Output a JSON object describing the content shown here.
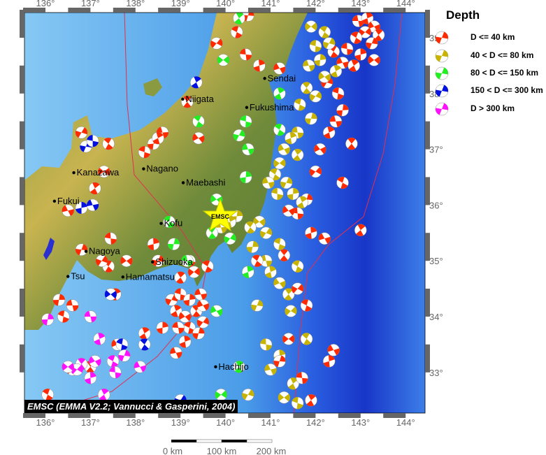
{
  "map": {
    "lon_ticks": [
      "136°",
      "137°",
      "138°",
      "139°",
      "140°",
      "141°",
      "142°",
      "143°",
      "144°"
    ],
    "lat_ticks": [
      "39°",
      "38°",
      "37°",
      "36°",
      "35°",
      "34°",
      "33°"
    ],
    "cities": [
      {
        "name": "Sendai",
        "lon": 140.87,
        "lat": 38.27
      },
      {
        "name": "Niigata",
        "lon": 139.05,
        "lat": 37.9
      },
      {
        "name": "Fukushima",
        "lon": 140.47,
        "lat": 37.75
      },
      {
        "name": "Nagano",
        "lon": 138.18,
        "lat": 36.65
      },
      {
        "name": "Maebashi",
        "lon": 139.06,
        "lat": 36.4
      },
      {
        "name": "Kanazawa",
        "lon": 136.63,
        "lat": 36.58
      },
      {
        "name": "Fukui",
        "lon": 136.2,
        "lat": 36.07
      },
      {
        "name": "Kofu",
        "lon": 138.57,
        "lat": 35.67
      },
      {
        "name": "Nagoya",
        "lon": 136.9,
        "lat": 35.17
      },
      {
        "name": "Tsu",
        "lon": 136.5,
        "lat": 34.72
      },
      {
        "name": "Shizuoka",
        "lon": 138.38,
        "lat": 34.98
      },
      {
        "name": "Hamamatsu",
        "lon": 137.72,
        "lat": 34.71
      },
      {
        "name": "Hachijo",
        "lon": 139.78,
        "lat": 33.1
      }
    ],
    "star_label": "EMSC",
    "credit": "EMSC (EMMA V2.2; Vannucci & Gasperini, 2004)",
    "scale": {
      "labels": [
        "0 km",
        "100 km",
        "200 km"
      ]
    }
  },
  "legend": {
    "title": "Depth",
    "classes": [
      {
        "label": "D <= 40 km",
        "color": "#ff2a00"
      },
      {
        "label": "40 < D <= 80 km",
        "color": "#c8b400"
      },
      {
        "label": "80 < D <= 150 km",
        "color": "#22ee22"
      },
      {
        "label": "150 < D <= 300 km",
        "color": "#0010e0"
      },
      {
        "label": "D > 300 km",
        "color": "#ff10ff"
      }
    ]
  },
  "events": [
    [
      142.95,
      39.3,
      1
    ],
    [
      143.15,
      39.35,
      1
    ],
    [
      143.3,
      39.2,
      1
    ],
    [
      143.4,
      39.05,
      1
    ],
    [
      143.1,
      39.1,
      1
    ],
    [
      142.9,
      39.0,
      1
    ],
    [
      143.25,
      38.9,
      1
    ],
    [
      142.7,
      38.8,
      1
    ],
    [
      143.0,
      38.7,
      1
    ],
    [
      142.6,
      38.55,
      1
    ],
    [
      142.85,
      38.5,
      1
    ],
    [
      143.3,
      38.6,
      1
    ],
    [
      142.4,
      38.75,
      1
    ],
    [
      142.25,
      38.2,
      1
    ],
    [
      142.5,
      38.0,
      1
    ],
    [
      142.6,
      37.7,
      1
    ],
    [
      142.45,
      37.5,
      1
    ],
    [
      142.3,
      37.3,
      1
    ],
    [
      142.1,
      37.0,
      1
    ],
    [
      142.8,
      37.1,
      1
    ],
    [
      142.0,
      36.6,
      1
    ],
    [
      142.6,
      36.4,
      1
    ],
    [
      141.8,
      36.1,
      1
    ],
    [
      141.6,
      35.85,
      1
    ],
    [
      141.9,
      35.5,
      1
    ],
    [
      142.2,
      35.4,
      1
    ],
    [
      143.0,
      35.55,
      1
    ],
    [
      141.9,
      39.2,
      2
    ],
    [
      142.2,
      39.1,
      2
    ],
    [
      142.3,
      38.9,
      2
    ],
    [
      142.0,
      38.85,
      2
    ],
    [
      142.1,
      38.6,
      2
    ],
    [
      141.85,
      38.5,
      2
    ],
    [
      142.45,
      38.4,
      2
    ],
    [
      142.2,
      38.3,
      2
    ],
    [
      141.8,
      38.1,
      2
    ],
    [
      142.0,
      37.95,
      2
    ],
    [
      141.65,
      37.8,
      2
    ],
    [
      141.9,
      37.55,
      2
    ],
    [
      141.6,
      37.3,
      2
    ],
    [
      141.45,
      37.2,
      2
    ],
    [
      141.3,
      37.0,
      2
    ],
    [
      141.6,
      36.9,
      2
    ],
    [
      141.2,
      36.75,
      2
    ],
    [
      141.1,
      36.55,
      2
    ],
    [
      141.35,
      36.4,
      2
    ],
    [
      141.15,
      36.2,
      2
    ],
    [
      141.5,
      36.2,
      2
    ],
    [
      140.95,
      36.4,
      2
    ],
    [
      141.7,
      36.05,
      2
    ],
    [
      140.75,
      35.7,
      2
    ],
    [
      140.55,
      35.6,
      2
    ],
    [
      140.9,
      35.5,
      2
    ],
    [
      141.2,
      35.3,
      2
    ],
    [
      140.6,
      35.25,
      2
    ],
    [
      140.9,
      35.0,
      2
    ],
    [
      141.0,
      34.8,
      2
    ],
    [
      141.2,
      34.6,
      2
    ],
    [
      141.4,
      34.4,
      2
    ],
    [
      141.45,
      34.1,
      2
    ],
    [
      141.6,
      34.9,
      2
    ],
    [
      140.7,
      34.2,
      2
    ],
    [
      140.9,
      33.5,
      2
    ],
    [
      141.2,
      33.3,
      2
    ],
    [
      141.0,
      33.05,
      2
    ],
    [
      141.5,
      32.8,
      2
    ],
    [
      141.3,
      32.55,
      2
    ],
    [
      141.8,
      33.6,
      2
    ],
    [
      140.5,
      32.6,
      2
    ],
    [
      141.6,
      32.45,
      2
    ],
    [
      140.25,
      35.8,
      2
    ],
    [
      139.9,
      35.6,
      2
    ],
    [
      140.1,
      35.7,
      2
    ],
    [
      141.4,
      35.9,
      1
    ],
    [
      141.3,
      35.1,
      1
    ],
    [
      141.6,
      34.5,
      1
    ],
    [
      141.8,
      34.2,
      1
    ],
    [
      141.2,
      33.2,
      1
    ],
    [
      141.7,
      32.9,
      1
    ],
    [
      142.3,
      33.2,
      1
    ],
    [
      142.4,
      33.4,
      1
    ],
    [
      141.9,
      32.5,
      1
    ],
    [
      141.4,
      33.6,
      1
    ],
    [
      140.7,
      35.0,
      1
    ],
    [
      138.8,
      34.3,
      1
    ],
    [
      139.0,
      34.4,
      1
    ],
    [
      139.2,
      34.3,
      1
    ],
    [
      139.45,
      34.4,
      1
    ],
    [
      138.9,
      34.1,
      1
    ],
    [
      139.1,
      34.0,
      1
    ],
    [
      139.35,
      34.1,
      1
    ],
    [
      139.5,
      33.9,
      1
    ],
    [
      139.2,
      33.8,
      1
    ],
    [
      139.4,
      33.7,
      1
    ],
    [
      138.95,
      33.8,
      1
    ],
    [
      139.1,
      33.55,
      1
    ],
    [
      139.5,
      34.2,
      1
    ],
    [
      139.0,
      34.7,
      1
    ],
    [
      139.3,
      34.8,
      1
    ],
    [
      139.6,
      34.9,
      1
    ],
    [
      138.5,
      35.0,
      1
    ],
    [
      139.2,
      35.0,
      1
    ],
    [
      138.6,
      33.8,
      1
    ],
    [
      138.9,
      33.35,
      1
    ],
    [
      138.2,
      33.7,
      1
    ],
    [
      137.8,
      35.0,
      1
    ],
    [
      137.4,
      34.9,
      1
    ],
    [
      137.25,
      35.0,
      1
    ],
    [
      136.4,
      34.0,
      1
    ],
    [
      136.3,
      34.3,
      1
    ],
    [
      136.6,
      34.2,
      1
    ],
    [
      137.55,
      34.4,
      1
    ],
    [
      137.6,
      33.5,
      1
    ],
    [
      137.0,
      33.1,
      1
    ],
    [
      136.6,
      33.05,
      1
    ],
    [
      136.05,
      32.6,
      1
    ],
    [
      136.8,
      35.2,
      1
    ],
    [
      137.45,
      35.4,
      1
    ],
    [
      138.4,
      35.3,
      1
    ],
    [
      136.5,
      35.9,
      1
    ],
    [
      137.1,
      36.3,
      1
    ],
    [
      137.3,
      36.6,
      1
    ],
    [
      137.4,
      37.1,
      1
    ],
    [
      136.8,
      37.3,
      1
    ],
    [
      138.2,
      36.95,
      1
    ],
    [
      138.4,
      37.1,
      1
    ],
    [
      138.6,
      37.3,
      1
    ],
    [
      138.5,
      37.2,
      1
    ],
    [
      139.4,
      37.2,
      1
    ],
    [
      139.15,
      37.85,
      1
    ],
    [
      139.8,
      38.9,
      1
    ],
    [
      140.25,
      39.1,
      1
    ],
    [
      140.5,
      39.4,
      1
    ],
    [
      140.45,
      38.7,
      1
    ],
    [
      140.75,
      38.5,
      1
    ],
    [
      141.2,
      38.45,
      1
    ],
    [
      140.3,
      39.35,
      3
    ],
    [
      139.95,
      38.6,
      3
    ],
    [
      139.4,
      37.5,
      3
    ],
    [
      140.3,
      37.25,
      3
    ],
    [
      140.45,
      37.5,
      3
    ],
    [
      140.45,
      36.5,
      3
    ],
    [
      140.5,
      37.0,
      3
    ],
    [
      141.2,
      38.0,
      3
    ],
    [
      139.8,
      36.1,
      3
    ],
    [
      139.7,
      35.5,
      3
    ],
    [
      140.1,
      35.4,
      3
    ],
    [
      138.75,
      35.7,
      3
    ],
    [
      138.85,
      35.3,
      3
    ],
    [
      139.15,
      35.0,
      3
    ],
    [
      140.5,
      34.8,
      3
    ],
    [
      139.8,
      34.1,
      3
    ],
    [
      140.3,
      33.1,
      3
    ],
    [
      139.9,
      32.6,
      3
    ],
    [
      141.2,
      37.35,
      3
    ],
    [
      136.9,
      37.05,
      4
    ],
    [
      137.05,
      37.15,
      4
    ],
    [
      136.8,
      35.95,
      4
    ],
    [
      137.05,
      36.0,
      4
    ],
    [
      139.35,
      38.2,
      4
    ],
    [
      137.45,
      34.4,
      4
    ],
    [
      138.2,
      33.5,
      4
    ],
    [
      139.0,
      32.5,
      4
    ],
    [
      137.7,
      33.5,
      4
    ],
    [
      136.05,
      33.95,
      5
    ],
    [
      137.0,
      34.0,
      5
    ],
    [
      137.2,
      33.6,
      5
    ],
    [
      137.1,
      33.2,
      5
    ],
    [
      136.8,
      33.15,
      5
    ],
    [
      136.7,
      33.05,
      5
    ],
    [
      137.5,
      33.2,
      5
    ],
    [
      137.75,
      33.3,
      5
    ],
    [
      137.55,
      33.0,
      5
    ],
    [
      137.0,
      32.9,
      5
    ],
    [
      138.1,
      33.1,
      5
    ],
    [
      137.3,
      32.6,
      5
    ],
    [
      136.5,
      33.1,
      5
    ]
  ]
}
